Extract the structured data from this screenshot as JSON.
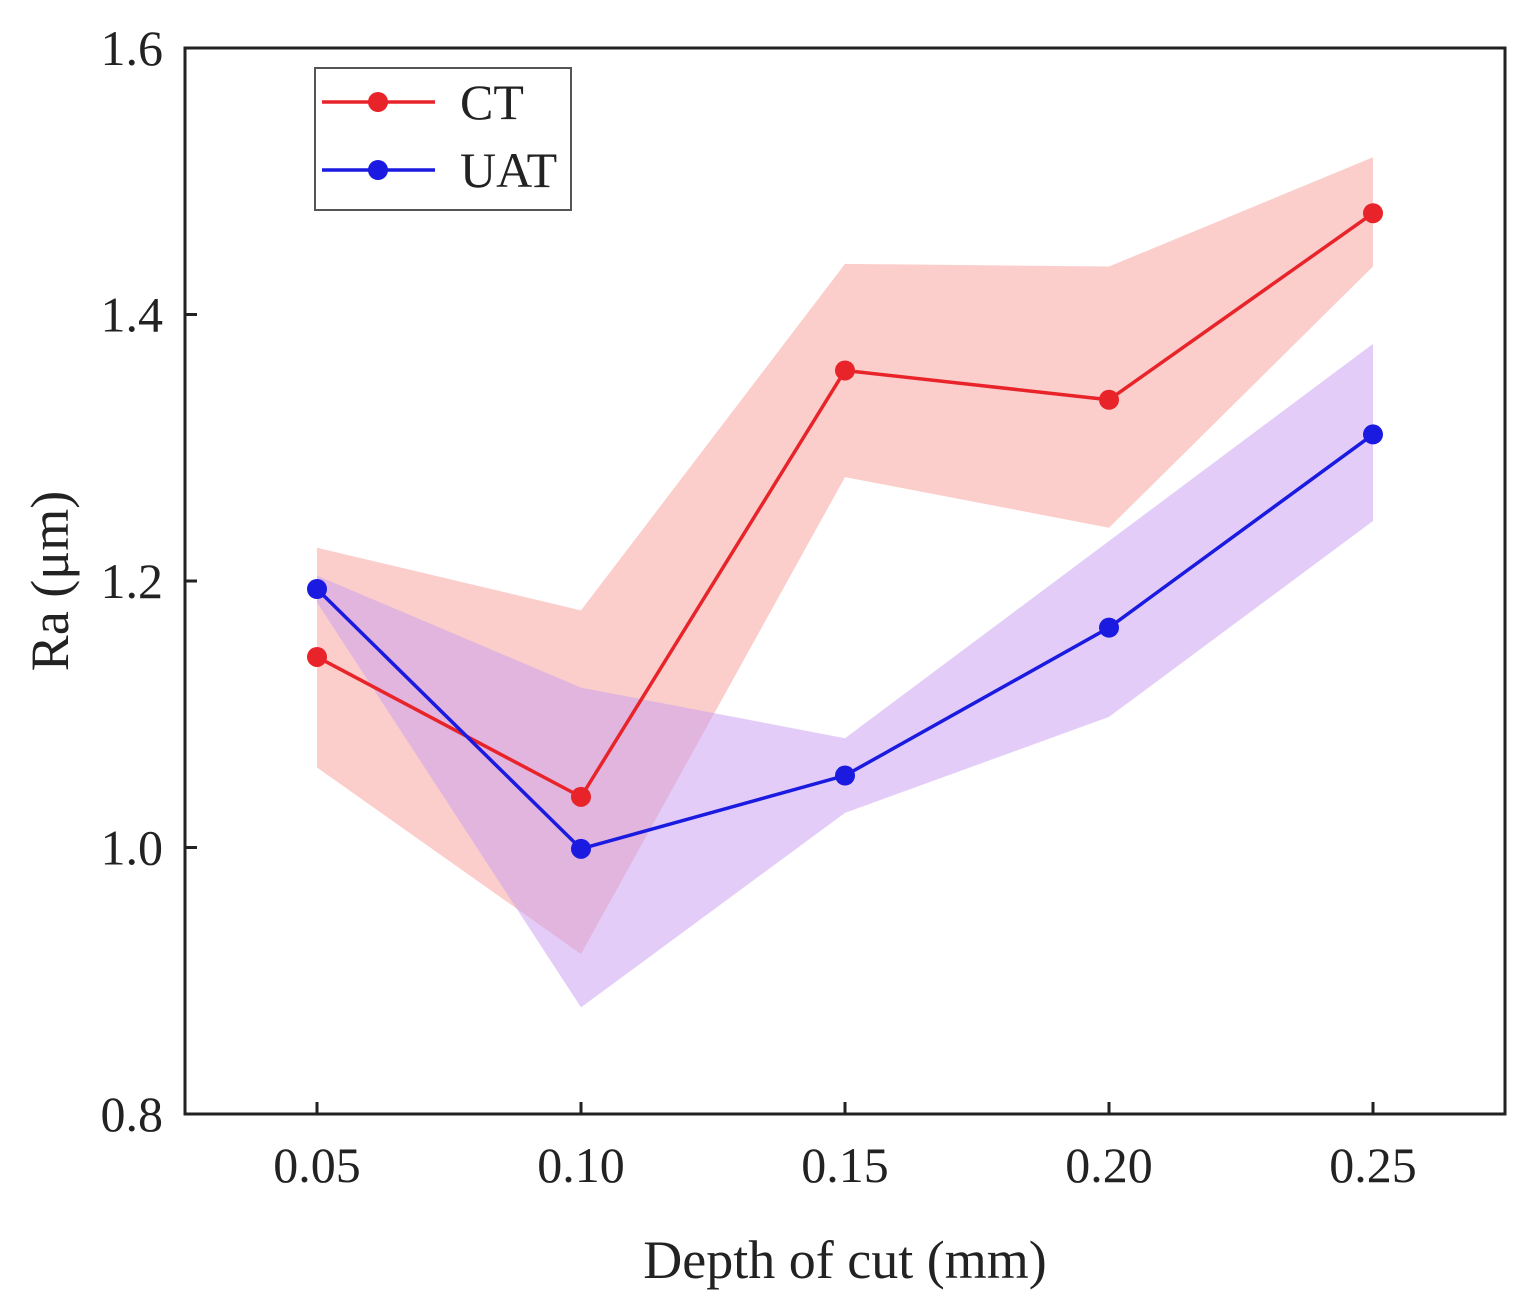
{
  "chart_data": {
    "type": "line",
    "title": "",
    "xlabel": "Depth of cut  (mm)",
    "ylabel": "Ra (μm)",
    "x": [
      0.05,
      0.1,
      0.15,
      0.2,
      0.25
    ],
    "x_tick_labels": [
      "0.05",
      "0.10",
      "0.15",
      "0.20",
      "0.25"
    ],
    "xlim": [
      0.025,
      0.275
    ],
    "ylim": [
      0.8,
      1.6
    ],
    "y_ticks": [
      0.8,
      1.0,
      1.2,
      1.4,
      1.6
    ],
    "y_tick_labels": [
      "0.8",
      "1.0",
      "1.2",
      "1.4",
      "1.6"
    ],
    "grid": false,
    "legend_position": "top-left",
    "series": [
      {
        "name": "CT",
        "color": "#e8242a",
        "band_color": "#f7a5a0",
        "values": [
          1.143,
          1.038,
          1.358,
          1.336,
          1.476
        ],
        "upper": [
          1.225,
          1.178,
          1.438,
          1.436,
          1.518
        ],
        "lower": [
          1.06,
          0.92,
          1.278,
          1.24,
          1.436
        ]
      },
      {
        "name": "UAT",
        "color": "#1a1ae0",
        "band_color": "#c79bf2",
        "values": [
          1.194,
          0.999,
          1.054,
          1.165,
          1.31
        ],
        "upper": [
          1.204,
          1.12,
          1.082,
          1.23,
          1.378
        ],
        "lower": [
          1.184,
          0.88,
          1.026,
          1.098,
          1.245
        ]
      }
    ]
  }
}
